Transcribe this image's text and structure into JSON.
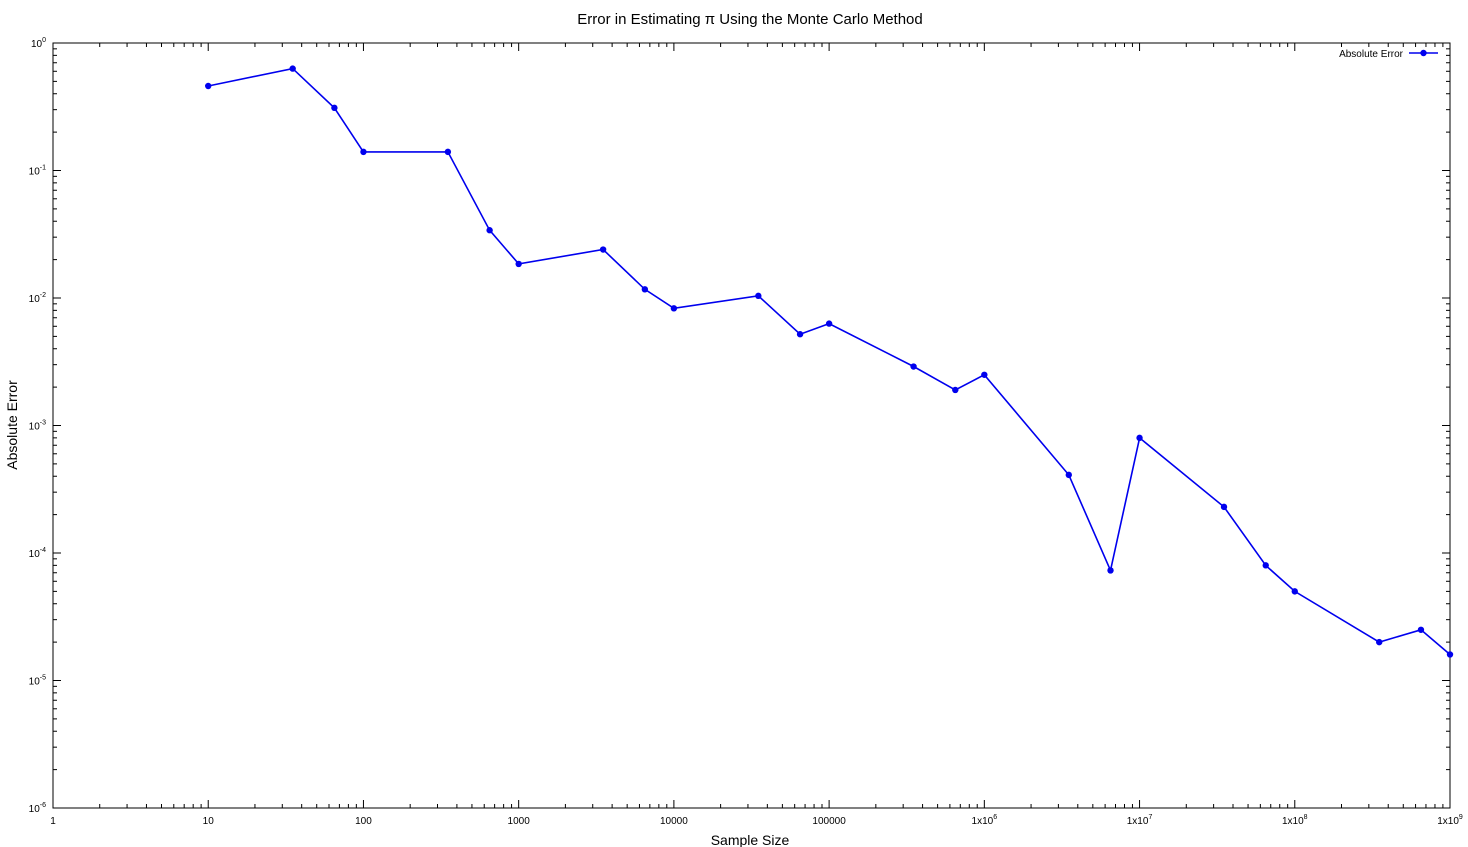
{
  "chart_data": {
    "type": "line",
    "title": "Error in Estimating π Using the Monte Carlo Method",
    "xlabel": "Sample Size",
    "ylabel": "Absolute Error",
    "x_scale": "log",
    "y_scale": "log",
    "xlim": [
      1,
      1000000000
    ],
    "ylim": [
      1e-06,
      1
    ],
    "grid": false,
    "legend_position": "top-right",
    "colors": {
      "series": "#0000ee",
      "axes": "#000000"
    },
    "x_ticks": [
      {
        "value": 1,
        "label": "1"
      },
      {
        "value": 10,
        "label": "10"
      },
      {
        "value": 100,
        "label": "100"
      },
      {
        "value": 1000,
        "label": "1000"
      },
      {
        "value": 10000,
        "label": "10000"
      },
      {
        "value": 100000,
        "label": "100000"
      },
      {
        "value": 1000000,
        "label": "1x10",
        "exp": "6"
      },
      {
        "value": 10000000,
        "label": "1x10",
        "exp": "7"
      },
      {
        "value": 100000000,
        "label": "1x10",
        "exp": "8"
      },
      {
        "value": 1000000000,
        "label": "1x10",
        "exp": "9"
      }
    ],
    "y_ticks": [
      {
        "value": 1,
        "label": "10",
        "exp": "0"
      },
      {
        "value": 0.1,
        "label": "10",
        "exp": "-1"
      },
      {
        "value": 0.01,
        "label": "10",
        "exp": "-2"
      },
      {
        "value": 0.001,
        "label": "10",
        "exp": "-3"
      },
      {
        "value": 0.0001,
        "label": "10",
        "exp": "-4"
      },
      {
        "value": 1e-05,
        "label": "10",
        "exp": "-5"
      },
      {
        "value": 1e-06,
        "label": "10",
        "exp": "-6"
      }
    ],
    "series": [
      {
        "name": "Absolute Error",
        "x": [
          10,
          35,
          65,
          100,
          350,
          650,
          1000,
          3500,
          6500,
          10000,
          35000,
          65000,
          100000,
          350000,
          650000,
          1000000,
          3500000,
          6500000,
          10000000,
          35000000,
          65000000,
          100000000,
          350000000,
          650000000,
          1000000000
        ],
        "y": [
          0.46,
          0.63,
          0.31,
          0.14,
          0.14,
          0.034,
          0.0185,
          0.024,
          0.0117,
          0.0083,
          0.0104,
          0.0052,
          0.0063,
          0.0029,
          0.0019,
          0.0025,
          0.00041,
          7.3e-05,
          0.0008,
          0.00023,
          8e-05,
          5e-05,
          2e-05,
          2.5e-05,
          1.6e-05
        ]
      }
    ]
  }
}
